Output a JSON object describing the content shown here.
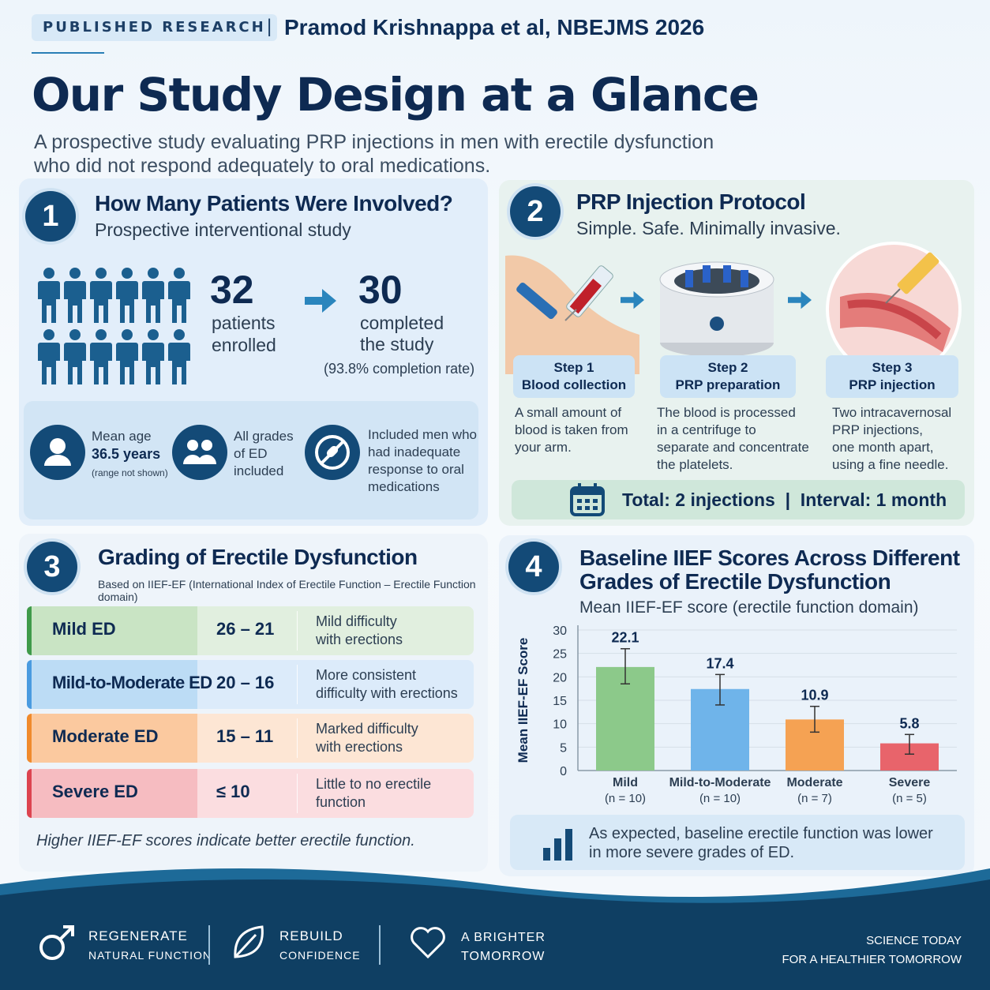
{
  "header": {
    "badge": "PUBLISHED RESEARCH",
    "separator": "|",
    "citation": "Pramod Krishnappa et al, NBEJMS 2026",
    "title": "Our Study Design at a Glance",
    "subtitle": "A prospective study evaluating PRP injections in men with erectile dysfunction who did not respond adequately to oral medications."
  },
  "panel1": {
    "number": "1",
    "title": "How Many Patients Were Involved?",
    "subtitle": "Prospective interventional study",
    "enrolled": {
      "value": "32",
      "label_1": "patients",
      "label_2": "enrolled"
    },
    "completed": {
      "value": "30",
      "label_1": "completed",
      "label_2": "the study",
      "rate": "(93.8% completion rate)"
    },
    "info": {
      "age_label": "Mean age",
      "age_value": "36.5 years",
      "age_note": "(range not shown)",
      "grades_1": "All grades",
      "grades_2": "of ED",
      "grades_3": "included",
      "incl_1": "Included men who",
      "incl_2": "had inadequate",
      "incl_3": "response to oral",
      "incl_4": "medications"
    }
  },
  "panel2": {
    "number": "2",
    "title": "PRP Injection Protocol",
    "subtitle": "Simple. Safe. Minimally invasive.",
    "steps": [
      {
        "step": "Step 1",
        "name": "Blood collection",
        "d1": "A small amount of",
        "d2": "blood is taken from",
        "d3": "your arm.",
        "d4": ""
      },
      {
        "step": "Step 2",
        "name": "PRP preparation",
        "d1": "The blood is processed",
        "d2": "in a centrifuge to",
        "d3": "separate and concentrate",
        "d4": "the platelets."
      },
      {
        "step": "Step 3",
        "name": "PRP injection",
        "d1": "Two intracavernosal",
        "d2": "PRP injections,",
        "d3": "one month apart,",
        "d4": "using a fine needle."
      }
    ],
    "total": "Total: 2 injections  |  Interval: 1 month"
  },
  "panel3": {
    "number": "3",
    "title": "Grading of Erectile Dysfunction",
    "subtitle": "Based on IIEF-EF (International Index of Erectile Function – Erectile Function domain)",
    "grades": [
      {
        "name": "Mild ED",
        "range": "26 – 21",
        "d1": "Mild difficulty",
        "d2": "with erections"
      },
      {
        "name": "Mild-to-Moderate ED",
        "range": "20 – 16",
        "d1": "More consistent",
        "d2": "difficulty with erections"
      },
      {
        "name": "Moderate ED",
        "range": "15 – 11",
        "d1": "Marked difficulty",
        "d2": "with erections"
      },
      {
        "name": "Severe ED",
        "range": "≤ 10",
        "d1": "Little to no erectile",
        "d2": "function"
      }
    ],
    "note": "Higher IIEF-EF scores indicate better erectile function."
  },
  "panel4": {
    "number": "4",
    "title_1": "Baseline IIEF Scores Across Different",
    "title_2": "Grades of Erectile Dysfunction",
    "subtitle": "Mean IIEF-EF score (erectile function domain)",
    "summary_1": "As expected, baseline erectile function was lower",
    "summary_2": "in more severe grades of ED."
  },
  "chart_data": {
    "type": "bar",
    "categories": [
      "Mild",
      "Mild-to-Moderate",
      "Moderate",
      "Severe"
    ],
    "category_notes": [
      "(n = 10)",
      "(n = 10)",
      "(n = 7)",
      "(n = 5)"
    ],
    "values": [
      22.1,
      17.4,
      10.9,
      5.8
    ],
    "value_labels": [
      "22.1",
      "17.4",
      "10.9",
      "5.8"
    ],
    "error_low": [
      18.5,
      14.0,
      8.2,
      3.5
    ],
    "error_high": [
      26.0,
      20.5,
      13.7,
      7.7
    ],
    "colors": [
      "#8cc98a",
      "#6fb4ea",
      "#f5a253",
      "#e8646b"
    ],
    "ylabel": "Mean IIEF-EF Score",
    "ylim": [
      0,
      30
    ],
    "yticks": [
      0,
      5,
      10,
      15,
      20,
      25,
      30
    ],
    "grid": true
  },
  "footer": {
    "items": [
      {
        "l1": "REGENERATE",
        "l2": "NATURAL FUNCTION"
      },
      {
        "l1": "REBUILD",
        "l2": "CONFIDENCE"
      },
      {
        "l1": "A BRIGHTER",
        "l2": "TOMORROW"
      }
    ],
    "right_1": "SCIENCE TODAY",
    "right_2": "FOR A HEALTHIER TOMORROW"
  },
  "colors": {
    "navy": "#0e2a52",
    "teal": "#134a77",
    "mild": "#8cc98a",
    "mild_moderate": "#6fb4ea",
    "moderate": "#f5a253",
    "severe": "#e8646b",
    "footer": "#0f3f63"
  }
}
